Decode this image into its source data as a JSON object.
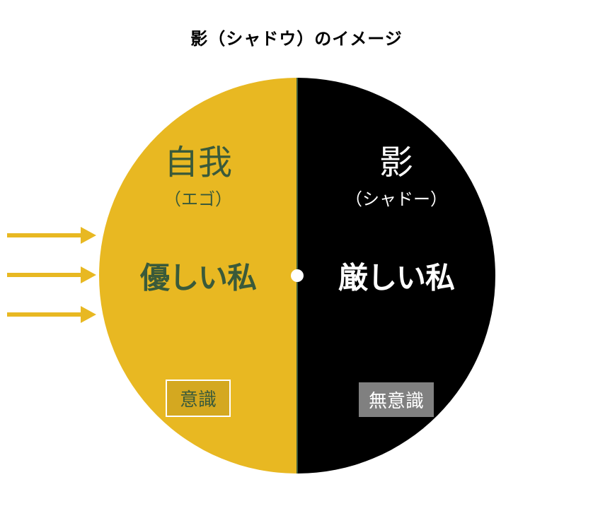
{
  "diagram": {
    "type": "infographic",
    "title": "影（シャドウ）のイメージ",
    "title_fontsize": 24,
    "title_color": "#000000",
    "background_color": "#ffffff",
    "circle": {
      "diameter": 560,
      "left_color": "#e8b822",
      "right_color": "#000000",
      "divider_color": "#3a5a3a",
      "center_dot_color": "#ffffff",
      "center_dot_size": 18
    },
    "left_side": {
      "title_main": "自我",
      "title_sub": "（エゴ）",
      "middle_text": "優しい私",
      "box_label": "意識",
      "text_color": "#3a5a3a",
      "box_border_color": "#ffffff",
      "box_bg_color": "#d4a820",
      "title_main_fontsize": 48,
      "title_sub_fontsize": 24,
      "middle_fontsize": 42,
      "box_fontsize": 26
    },
    "right_side": {
      "title_main": "影",
      "title_sub": "（シャドー）",
      "middle_text": "厳しい私",
      "box_label": "無意識",
      "text_color": "#ffffff",
      "box_bg_color": "#808080",
      "title_main_fontsize": 48,
      "title_sub_fontsize": 24,
      "middle_fontsize": 42,
      "box_fontsize": 26
    },
    "arrows": {
      "count": 3,
      "color": "#e8b822",
      "length": 110,
      "thickness": 6,
      "spacing": 50
    }
  }
}
